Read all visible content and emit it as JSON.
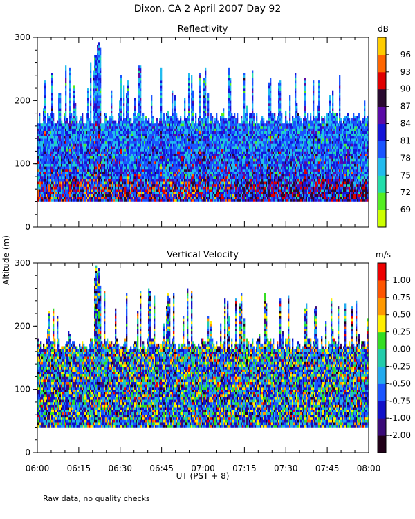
{
  "figure": {
    "title": "Dixon, CA   2 April 2007   Day  92",
    "shared_ylabel": "Altitude (m)",
    "note": "Raw data, no quality checks"
  },
  "chart_data": [
    {
      "type": "heatmap",
      "title": "Reflectivity",
      "xlabel": "",
      "ylabel": "Altitude (m)",
      "x_range": [
        "06:00",
        "08:00"
      ],
      "ylim": [
        0,
        300
      ],
      "y_ticks": [
        0,
        100,
        200,
        300
      ],
      "grid": false,
      "colorbar": {
        "unit": "dB",
        "range": [
          69,
          99
        ],
        "tick_values": [
          69,
          72,
          75,
          78,
          81,
          84,
          87,
          90,
          93,
          96
        ],
        "tick_labels": [
          "69",
          "72",
          "75",
          "78",
          "81",
          "84",
          "87",
          "90",
          "93",
          "96"
        ],
        "colors": [
          "#ccff00",
          "#55ee22",
          "#22ddaa",
          "#22bbee",
          "#1a55ff",
          "#1414d8",
          "#5a0aa6",
          "#2a0a30",
          "#e00000",
          "#ff6600",
          "#ffcc00"
        ]
      },
      "data_description": "Radar reflectivity echoes between ~40 m and ~180 m altitude (sporadic up to ~300 m), strongest (87-93 dB) near 40-80 m after 07:15."
    },
    {
      "type": "heatmap",
      "title": "Vertical Velocity",
      "xlabel": "UT  (PST + 8)",
      "ylabel": "Altitude (m)",
      "x_range": [
        "06:00",
        "08:00"
      ],
      "x_ticks": [
        "06:00",
        "06:15",
        "06:30",
        "06:45",
        "07:00",
        "07:15",
        "07:30",
        "07:45",
        "08:00"
      ],
      "ylim": [
        0,
        300
      ],
      "y_ticks": [
        0,
        100,
        200,
        300
      ],
      "grid": false,
      "colorbar": {
        "unit": "m/s",
        "tick_values": [
          -2.0,
          -1.0,
          -0.75,
          -0.5,
          -0.25,
          0.0,
          0.25,
          0.5,
          0.75,
          1.0
        ],
        "tick_labels": [
          "-2.00",
          "-1.00",
          "-0.75",
          "-0.50",
          "-0.25",
          "0.00",
          "0.25",
          "0.50",
          "0.75",
          "1.00"
        ],
        "colors": [
          "#200018",
          "#3a0a78",
          "#1010c8",
          "#1a55ff",
          "#22aaee",
          "#22ccaa",
          "#33dd22",
          "#ffee00",
          "#ff9900",
          "#ff5500",
          "#ee0000"
        ]
      },
      "data_description": "Vertical velocity of scatterers between ~40 m and ~180 m (sporadic up to ~300 m), mostly between -0.75 and +0.25 m/s."
    }
  ]
}
